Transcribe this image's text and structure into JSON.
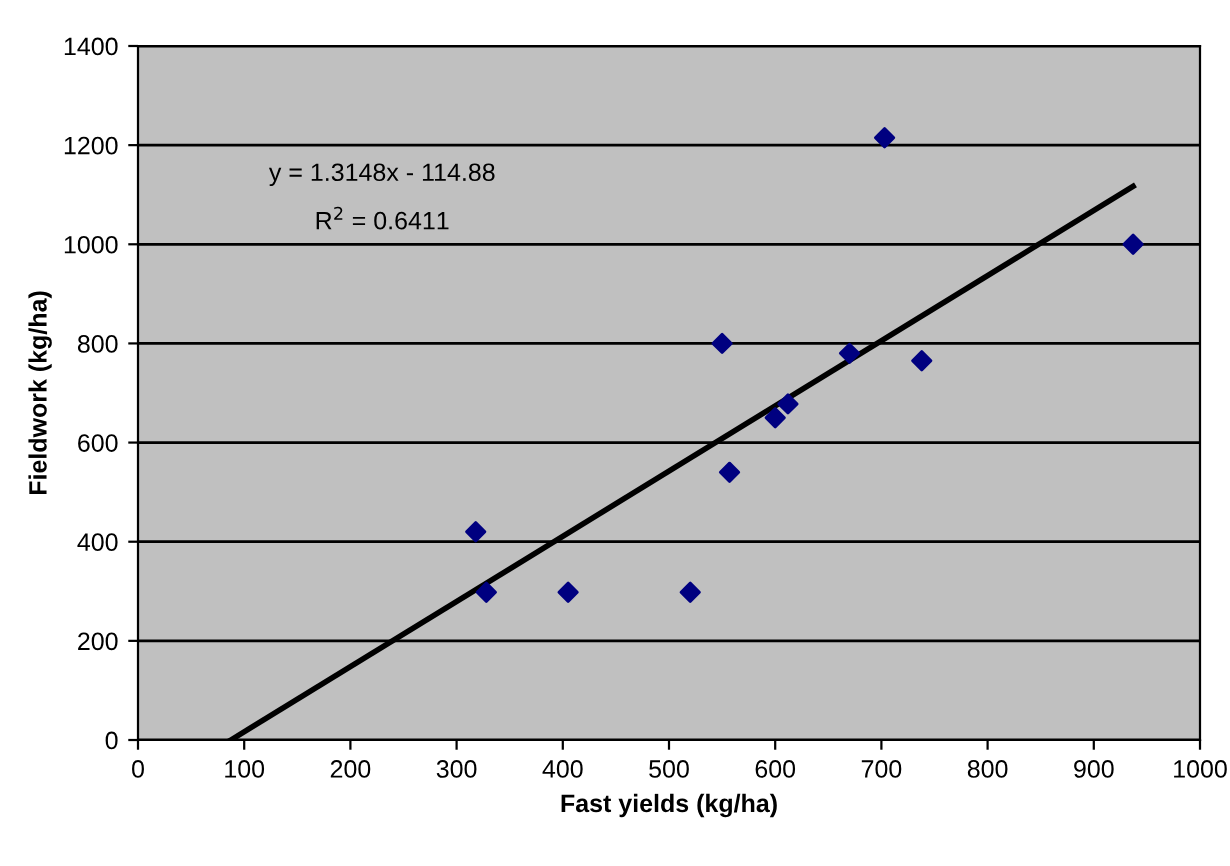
{
  "chart_data": {
    "type": "scatter",
    "xlabel": "Fast yields (kg/ha)",
    "ylabel": "Fieldwork (kg/ha)",
    "series": [
      {
        "color": "#000080",
        "marker": "diamond",
        "x": [
          318,
          328,
          405,
          520,
          550,
          557,
          600,
          612,
          670,
          703,
          738,
          937
        ],
        "values": [
          420,
          298,
          298,
          298,
          800,
          540,
          650,
          678,
          780,
          1215,
          765,
          1000
        ]
      },
      {
        "type": "line",
        "color": "#000000",
        "marker": "none",
        "x": [
          87.4,
          937
        ],
        "values": [
          0,
          1117
        ]
      }
    ],
    "annotations": [
      "y = 1.3148x - 114.88",
      "R$^{2}$ = 0.6411"
    ],
    "xlim": [
      0,
      1000
    ],
    "ylim": [
      0,
      1400
    ],
    "xticks": [
      0,
      100,
      200,
      300,
      400,
      500,
      600,
      700,
      800,
      900,
      1000
    ],
    "yticks": [
      0,
      200,
      400,
      600,
      800,
      1000,
      1200,
      1400
    ],
    "grid": "y"
  }
}
